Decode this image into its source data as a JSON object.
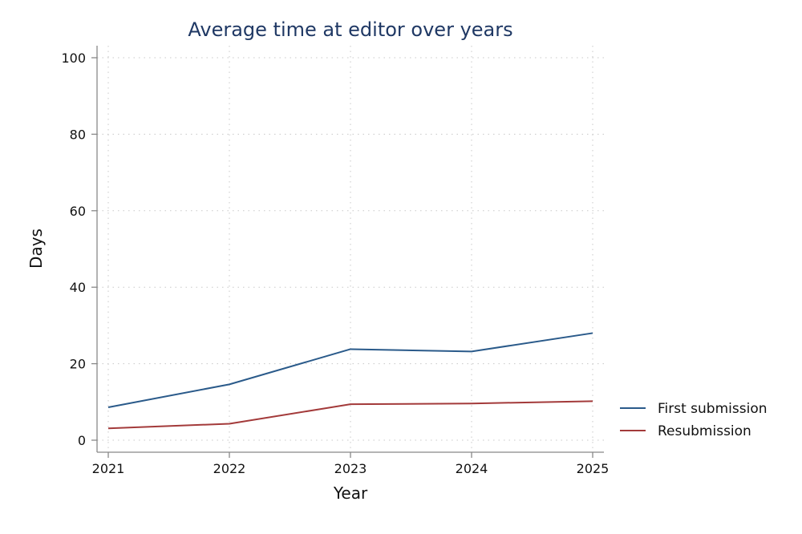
{
  "chart_data": {
    "type": "line",
    "title": "Average time at editor over years",
    "xlabel": "Year",
    "ylabel": "Days",
    "categories": [
      "2021",
      "2022",
      "2023",
      "2024",
      "2025"
    ],
    "ylim": [
      0,
      100
    ],
    "yticks": [
      "0",
      "20",
      "40",
      "60",
      "80",
      "100"
    ],
    "grid": true,
    "legend_position": "right",
    "series": [
      {
        "name": "First submission",
        "values": [
          8.6,
          14.6,
          23.8,
          23.2,
          28.0
        ],
        "color": "#2a5a8a"
      },
      {
        "name": "Resubmission",
        "values": [
          3.1,
          4.3,
          9.4,
          9.6,
          10.2
        ],
        "color": "#a33a3a"
      }
    ]
  }
}
